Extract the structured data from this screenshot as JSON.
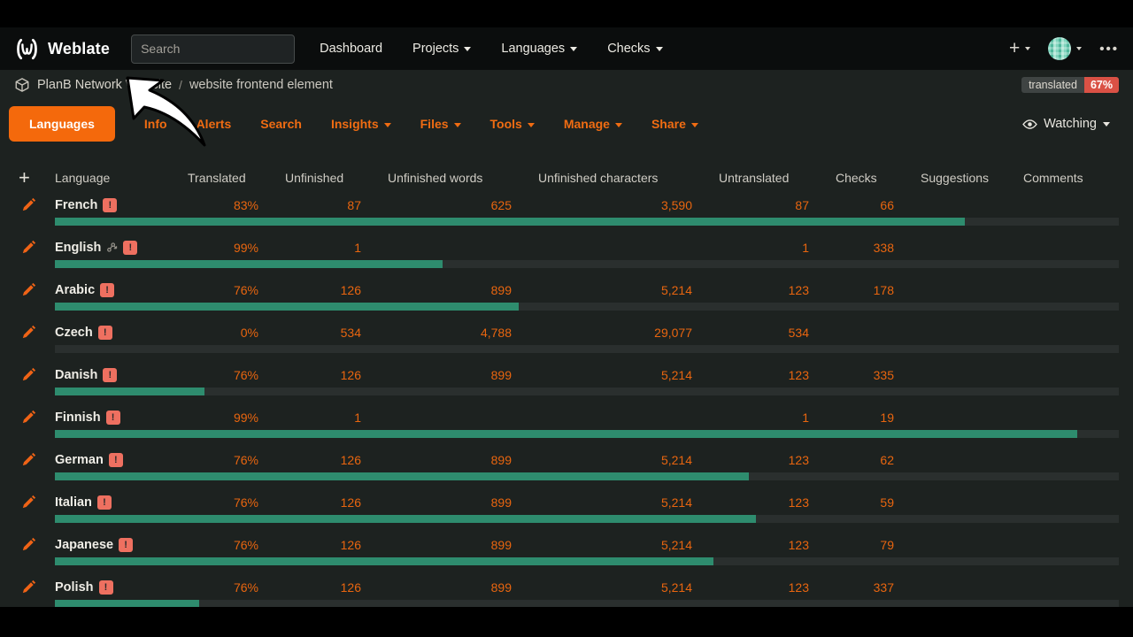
{
  "colors": {
    "accent_orange": "#f4690c",
    "link_orange": "#f06c12",
    "number_orange": "#e8650f",
    "progress_green": "#2e8c6e",
    "alert_badge_red": "#ee7060",
    "translated_badge_red": "#da5145",
    "page_background": "#1d2220",
    "navbar_background": "#0b0d0d"
  },
  "navbar": {
    "brand": "Weblate",
    "search_placeholder": "Search",
    "links": {
      "dashboard": "Dashboard",
      "projects": "Projects",
      "languages": "Languages",
      "checks": "Checks"
    },
    "plus": "+",
    "menu_dots": "•••"
  },
  "breadcrumb": {
    "project": "PlanB Network Website",
    "separator": "/",
    "component": "website frontend element"
  },
  "status_badge": {
    "label": "translated",
    "value": "67%"
  },
  "tabs": {
    "languages": "Languages",
    "info": "Info",
    "alerts": "Alerts",
    "search": "Search",
    "insights": "Insights",
    "files": "Files",
    "tools": "Tools",
    "manage": "Manage",
    "share": "Share",
    "watching": "Watching"
  },
  "table": {
    "add_button": "+",
    "headers": [
      "Language",
      "Translated",
      "Unfinished",
      "Unfinished words",
      "Unfinished characters",
      "Untranslated",
      "Checks",
      "Suggestions",
      "Comments"
    ],
    "alert_glyph": "!",
    "rows": [
      {
        "language": "French",
        "source_language": false,
        "alert": "!",
        "translated": "83%",
        "unfinished": "87",
        "unfinished_words": "625",
        "unfinished_characters": "3,590",
        "untranslated": "87",
        "checks": "66",
        "suggestions": "",
        "comments": "",
        "bar_percent": 85.5
      },
      {
        "language": "English",
        "source_language": true,
        "alert": "!",
        "translated": "99%",
        "unfinished": "1",
        "unfinished_words": "",
        "unfinished_characters": "",
        "untranslated": "1",
        "checks": "338",
        "suggestions": "",
        "comments": "",
        "bar_percent": 36.4
      },
      {
        "language": "Arabic",
        "source_language": false,
        "alert": "!",
        "translated": "76%",
        "unfinished": "126",
        "unfinished_words": "899",
        "unfinished_characters": "5,214",
        "untranslated": "123",
        "checks": "178",
        "suggestions": "",
        "comments": "",
        "bar_percent": 43.6
      },
      {
        "language": "Czech",
        "source_language": false,
        "alert": "!",
        "translated": "0%",
        "unfinished": "534",
        "unfinished_words": "4,788",
        "unfinished_characters": "29,077",
        "untranslated": "534",
        "checks": "",
        "suggestions": "",
        "comments": "",
        "bar_percent": 0
      },
      {
        "language": "Danish",
        "source_language": false,
        "alert": "!",
        "translated": "76%",
        "unfinished": "126",
        "unfinished_words": "899",
        "unfinished_characters": "5,214",
        "untranslated": "123",
        "checks": "335",
        "suggestions": "",
        "comments": "",
        "bar_percent": 14.1
      },
      {
        "language": "Finnish",
        "source_language": false,
        "alert": "!",
        "translated": "99%",
        "unfinished": "1",
        "unfinished_words": "",
        "unfinished_characters": "",
        "untranslated": "1",
        "checks": "19",
        "suggestions": "",
        "comments": "",
        "bar_percent": 96.1
      },
      {
        "language": "German",
        "source_language": false,
        "alert": "!",
        "translated": "76%",
        "unfinished": "126",
        "unfinished_words": "899",
        "unfinished_characters": "5,214",
        "untranslated": "123",
        "checks": "62",
        "suggestions": "",
        "comments": "",
        "bar_percent": 65.2
      },
      {
        "language": "Italian",
        "source_language": false,
        "alert": "!",
        "translated": "76%",
        "unfinished": "126",
        "unfinished_words": "899",
        "unfinished_characters": "5,214",
        "untranslated": "123",
        "checks": "59",
        "suggestions": "",
        "comments": "",
        "bar_percent": 65.9
      },
      {
        "language": "Japanese",
        "source_language": false,
        "alert": "!",
        "translated": "76%",
        "unfinished": "126",
        "unfinished_words": "899",
        "unfinished_characters": "5,214",
        "untranslated": "123",
        "checks": "79",
        "suggestions": "",
        "comments": "",
        "bar_percent": 61.9
      },
      {
        "language": "Polish",
        "source_language": false,
        "alert": "!",
        "translated": "76%",
        "unfinished": "126",
        "unfinished_words": "899",
        "unfinished_characters": "5,214",
        "untranslated": "123",
        "checks": "337",
        "suggestions": "",
        "comments": "",
        "bar_percent": 13.6
      }
    ]
  }
}
